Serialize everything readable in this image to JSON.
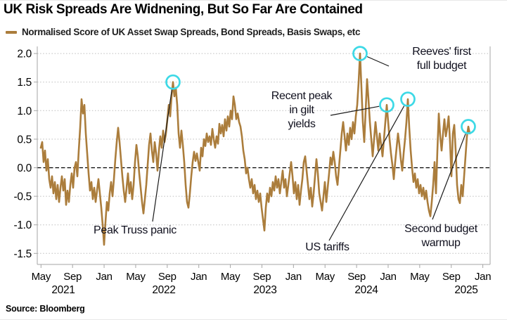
{
  "title": "UK Risk Spreads Are Widnening, But So Far Are Contained",
  "legend": {
    "label": "Normalised Score of UK Asset Swap Spreads, Bond Spreads, Basis Swaps, etc",
    "swatch_color": "#AB7D3C"
  },
  "source": "Source: Bloomberg",
  "chart_data": {
    "type": "line",
    "title": "UK Risk Spreads Are Widnening, But So Far Are Contained",
    "ylim": [
      -1.5,
      2.0
    ],
    "y_ticks": [
      2.0,
      1.5,
      1.0,
      0.5,
      0.0,
      -0.5,
      -1.0,
      -1.5
    ],
    "x_ticks": {
      "months": [
        "May",
        "Sep",
        "Jan",
        "May",
        "Sep",
        "Jan",
        "May",
        "Sep",
        "Jan",
        "May",
        "Sep",
        "Jan",
        "May",
        "Sep",
        "Jan"
      ],
      "years": [
        "2021",
        "2022",
        "2023",
        "2024",
        "2025"
      ]
    },
    "grid": "dotted horizontal gridlines, dashed black zero line",
    "legend_position": "top-left",
    "highlight_circle_color": "#3DD9E6",
    "series": [
      {
        "name": "Normalised Score of UK Asset Swap Spreads, Bond Spreads, Basis Swaps, etc",
        "color": "#AB7D3C",
        "start": "2021-05",
        "end": "2025-12",
        "sampling": "uniform, approx 9-day intervals (values estimated from plot)",
        "values": [
          0.35,
          0.45,
          0.1,
          0.3,
          -0.05,
          0.15,
          -0.2,
          -0.35,
          -0.15,
          -0.45,
          -0.25,
          -0.55,
          -0.3,
          -0.6,
          -0.35,
          -0.15,
          -0.4,
          -0.2,
          -0.65,
          -0.4,
          -0.6,
          -0.3,
          -0.1,
          -0.35,
          0.0,
          0.1,
          -0.15,
          0.3,
          0.7,
          1.2,
          0.95,
          1.1,
          0.6,
          0.25,
          -0.1,
          -0.4,
          -0.25,
          -0.55,
          -0.35,
          -0.6,
          -0.4,
          -0.2,
          -0.45,
          -0.7,
          -1.0,
          -1.35,
          -0.95,
          -0.6,
          -0.75,
          -0.45,
          -0.25,
          -0.5,
          -0.2,
          0.15,
          0.45,
          0.7,
          0.45,
          0.15,
          -0.15,
          -0.4,
          -0.6,
          -0.35,
          -0.1,
          -0.45,
          -0.25,
          -0.55,
          -0.3,
          0.1,
          0.4,
          0.2,
          -0.1,
          -0.35,
          -0.6,
          -0.8,
          -0.55,
          -0.3,
          0.05,
          0.4,
          0.6,
          0.3,
          0.1,
          0.45,
          0.25,
          -0.05,
          0.3,
          0.55,
          0.35,
          0.65,
          0.45,
          0.6,
          0.85,
          1.1,
          0.9,
          1.25,
          1.5,
          1.25,
          1.4,
          1.1,
          0.6,
          0.35,
          0.65,
          0.4,
          0.1,
          -0.3,
          -0.6,
          -0.7,
          -0.45,
          -0.15,
          0.1,
          0.28,
          0.12,
          0.25,
          0.1,
          -0.05,
          0.35,
          0.2,
          0.5,
          0.38,
          0.6,
          0.45,
          0.55,
          0.4,
          0.68,
          0.5,
          0.35,
          0.55,
          0.42,
          0.77,
          0.6,
          0.75,
          0.55,
          0.85,
          0.65,
          0.9,
          0.72,
          1.0,
          0.85,
          1.25,
          1.1,
          0.85,
          0.95,
          0.8,
          0.72,
          0.55,
          0.3,
          0.15,
          -0.1,
          0.0,
          -0.2,
          -0.35,
          -0.2,
          -0.45,
          -0.3,
          -0.55,
          -0.4,
          -0.6,
          -0.45,
          -0.7,
          -0.9,
          -1.1,
          -0.7,
          -0.45,
          -0.6,
          -0.35,
          -0.5,
          -0.25,
          -0.4,
          -0.15,
          -0.35,
          -0.2,
          -0.45,
          -0.25,
          -0.05,
          -0.35,
          -0.2,
          -0.5,
          -0.3,
          -0.1,
          0.1,
          -0.15,
          -0.45,
          -0.25,
          -0.55,
          -0.3,
          -0.65,
          -0.4,
          -0.2,
          0.1,
          0.2,
          -0.05,
          -0.3,
          -0.55,
          -0.35,
          -0.68,
          -0.45,
          -0.15,
          0.15,
          -0.1,
          -0.45,
          -0.6,
          -0.75,
          -0.5,
          -0.25,
          -0.6,
          -0.35,
          -0.1,
          0.18,
          0.05,
          0.28,
          0.1,
          -0.15,
          -0.3,
          0.0,
          0.3,
          0.6,
          0.8,
          0.55,
          0.3,
          0.6,
          0.4,
          0.7,
          0.5,
          0.8,
          0.6,
          0.9,
          1.1,
          1.5,
          2.0,
          1.4,
          0.8,
          0.45,
          1.0,
          1.55,
          1.2,
          0.8,
          0.5,
          0.2,
          0.5,
          0.8,
          0.55,
          0.3,
          0.6,
          0.4,
          0.2,
          0.5,
          0.8,
          1.1,
          0.8,
          0.5,
          0.25,
          0.05,
          -0.2,
          0.1,
          0.35,
          0.6,
          0.4,
          0.15,
          -0.05,
          0.25,
          0.5,
          0.8,
          1.2,
          0.7,
          0.3,
          0.0,
          -0.25,
          -0.1,
          -0.35,
          -0.2,
          -0.45,
          -0.3,
          -0.5,
          -0.35,
          -0.55,
          -0.4,
          -0.6,
          -0.75,
          -0.85,
          -0.6,
          -0.3,
          0.1,
          -0.45,
          0.3,
          0.95,
          0.55,
          0.3,
          0.6,
          0.85,
          0.55,
          0.7,
          0.9,
          0.45,
          -0.15,
          0.6,
          0.75,
          0.3,
          -0.3,
          -0.55,
          -0.62,
          -0.3,
          -0.5,
          -0.15,
          0.2,
          0.55,
          0.72,
          0.6
        ]
      }
    ],
    "annotations": [
      {
        "id": "truss",
        "lines": [
          "Peak Truss panic"
        ],
        "point_index": 94,
        "point_value": 1.5,
        "point_date": "2022-09"
      },
      {
        "id": "reeves",
        "lines": [
          "Reeves' first",
          "full budget"
        ],
        "point_index": 227,
        "point_value": 2.0,
        "point_date": "2024-10"
      },
      {
        "id": "gilt",
        "lines": [
          "Recent peak",
          "in gilt",
          "yields"
        ],
        "point_index": 246,
        "point_value": 1.1,
        "point_date": "2025-01"
      },
      {
        "id": "tariffs",
        "lines": [
          "US tariffs"
        ],
        "point_index": 261,
        "point_value": 1.2,
        "point_date": "2025-04"
      },
      {
        "id": "second",
        "lines": [
          "Second budget",
          "warmup"
        ],
        "point_index": 304,
        "point_value": 0.72,
        "point_date": "2025-11"
      }
    ]
  }
}
